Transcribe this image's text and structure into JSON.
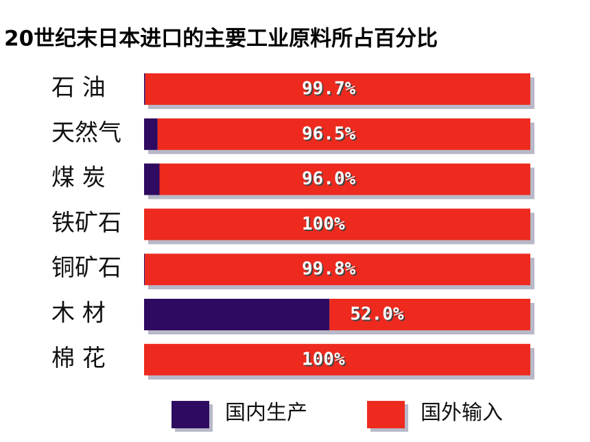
{
  "chart_data": {
    "type": "bar",
    "orientation": "horizontal",
    "stacked": true,
    "title": "20世纪末日本进口的主要工业原料所占百分比",
    "categories": [
      "石 油",
      "天然气",
      "煤 炭",
      "铁矿石",
      "铜矿石",
      "木 材",
      "棉 花"
    ],
    "series": [
      {
        "name": "国内生产",
        "color": "#2e0b60",
        "values": [
          0.3,
          3.5,
          4.0,
          0,
          0.2,
          48.0,
          0
        ]
      },
      {
        "name": "国外输入",
        "color": "#ee2a1e",
        "values": [
          99.7,
          96.5,
          96.0,
          100,
          99.8,
          52.0,
          100
        ],
        "value_labels": [
          "99.7%",
          "96.5%",
          "96.0%",
          "100%",
          "99.8%",
          "52.0%",
          "100%"
        ]
      }
    ],
    "xlim": [
      0,
      100
    ]
  }
}
